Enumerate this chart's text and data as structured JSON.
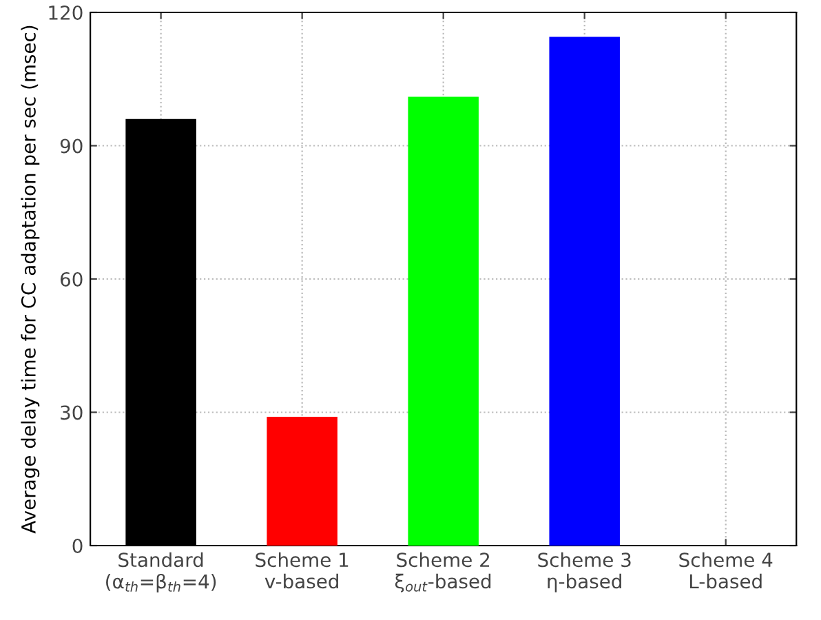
{
  "chart_data": {
    "type": "bar",
    "categories": [
      "Standard\n(α$_{th}$=β$_{th}$=4)",
      "Scheme 1\nv-based",
      "Scheme 2\nξ$_{out}$-based",
      "Scheme 3\nη-based",
      "Scheme 4\nL-based"
    ],
    "values": [
      96,
      29,
      101,
      114.5,
      0
    ],
    "colors": [
      "#000000",
      "#ff0000",
      "#00ff00",
      "#0000ff",
      "#ff00ff"
    ],
    "ylabel": "Average delay time for CC adaptation per sec (msec)",
    "ylim": [
      0,
      120
    ],
    "yticks": [
      0,
      30,
      60,
      90,
      120
    ],
    "grid": true
  }
}
